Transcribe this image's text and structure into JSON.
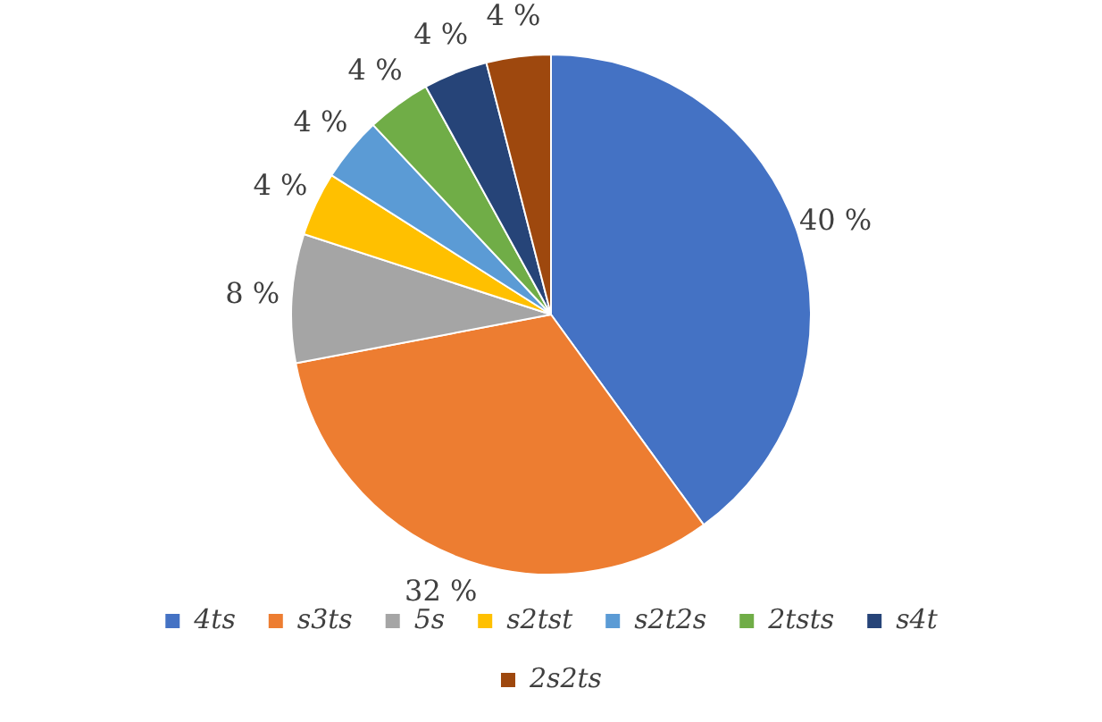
{
  "chart_data": {
    "type": "pie",
    "categories": [
      "4ts",
      "s3ts",
      "5s",
      "s2tst",
      "s2t2s",
      "2tsts",
      "s4t",
      "2s2ts"
    ],
    "values": [
      40,
      32,
      8,
      4,
      4,
      4,
      4,
      4
    ],
    "colors": [
      "#4472c4",
      "#ed7d31",
      "#a5a5a5",
      "#ffc000",
      "#5b9bd5",
      "#70ad47",
      "#264478",
      "#9e480e"
    ],
    "value_labels": [
      "40 %",
      "32 %",
      "8 %",
      "4 %",
      "4 %",
      "4 %",
      "4 %",
      "4 %"
    ],
    "legend": "bottom"
  }
}
